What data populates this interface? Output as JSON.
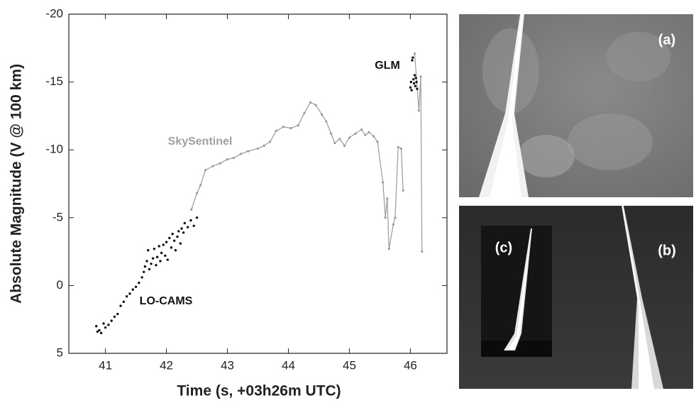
{
  "chart_data": {
    "type": "line",
    "x_label": "Time (s, +03h26m UTC)",
    "y_label": "Absolute Magnitude  (V @ 100 km)",
    "xlim": [
      40.4,
      46.6
    ],
    "xticks": [
      41,
      42,
      43,
      44,
      45,
      46
    ],
    "ylim": [
      5,
      -20
    ],
    "yticks": [
      -20,
      -15,
      -10,
      -5,
      0,
      5
    ],
    "series": [
      {
        "name": "SkySentinel",
        "type": "line",
        "color": "#9a9a9a",
        "x": [
          42.41,
          42.5,
          42.56,
          42.64,
          42.76,
          42.88,
          43.0,
          43.1,
          43.22,
          43.34,
          43.5,
          43.6,
          43.7,
          43.8,
          43.92,
          44.04,
          44.16,
          44.26,
          44.36,
          44.45,
          44.55,
          44.62,
          44.7,
          44.76,
          44.84,
          44.92,
          45.0,
          45.1,
          45.2,
          45.26,
          45.32,
          45.4,
          45.46,
          45.55,
          45.59,
          45.62,
          45.65,
          45.72,
          45.75,
          45.8,
          45.85,
          45.88,
          45.95,
          46.07,
          46.14,
          46.17,
          46.19
        ],
        "values": [
          -5.6,
          -6.8,
          -7.4,
          -8.5,
          -8.8,
          -9.0,
          -9.3,
          -9.4,
          -9.7,
          -9.9,
          -10.1,
          -10.3,
          -10.6,
          -11.4,
          -11.7,
          -11.6,
          -11.8,
          -12.7,
          -13.5,
          -13.3,
          -12.6,
          -12.1,
          -11.2,
          -10.5,
          -10.8,
          -10.3,
          -10.9,
          -11.2,
          -11.5,
          -11.1,
          -11.3,
          -11.0,
          -10.6,
          -7.6,
          -5.0,
          -6.4,
          -2.7,
          -4.5,
          -5.0,
          -10.2,
          -10.1,
          -7.0,
          null,
          -17.1,
          -12.9,
          -15.4,
          -2.5
        ]
      },
      {
        "name": "LO-CAMS",
        "type": "scatter",
        "color": "#111111",
        "x": [
          40.85,
          40.87,
          40.9,
          40.93,
          40.97,
          41.0,
          41.05,
          41.1,
          41.15,
          41.2,
          41.25,
          41.3,
          41.35,
          41.4,
          41.45,
          41.5,
          41.55,
          41.6,
          41.63,
          41.65,
          41.68,
          41.7,
          41.72,
          41.75,
          41.78,
          41.8,
          41.83,
          41.85,
          41.88,
          41.9,
          41.92,
          41.95,
          41.98,
          42.0,
          42.02,
          42.05,
          42.08,
          42.1,
          42.13,
          42.15,
          42.18,
          42.2,
          42.23,
          42.25,
          42.28,
          42.3,
          42.35,
          42.4,
          42.45,
          42.5
        ],
        "values": [
          3.0,
          3.4,
          3.3,
          3.5,
          2.8,
          3.1,
          2.9,
          2.6,
          2.3,
          2.1,
          1.5,
          1.2,
          0.8,
          0.6,
          0.3,
          0.1,
          -0.2,
          -0.6,
          -1.0,
          -1.4,
          -1.8,
          -2.6,
          -1.2,
          -1.6,
          -2.0,
          -2.7,
          -1.5,
          -2.1,
          -2.9,
          -1.8,
          -2.4,
          -3.0,
          -2.2,
          -3.2,
          -1.9,
          -3.5,
          -2.8,
          -3.8,
          -3.3,
          -2.6,
          -3.6,
          -4.0,
          -3.1,
          -4.2,
          -3.9,
          -4.6,
          -4.3,
          -4.8,
          -4.4,
          -5.0
        ]
      },
      {
        "name": "GLM",
        "type": "scatter",
        "color": "#111111",
        "x": [
          46.0,
          46.01,
          46.02,
          46.03,
          46.04,
          46.05,
          46.06,
          46.07,
          46.08,
          46.09,
          46.1,
          46.11
        ],
        "values": [
          -14.6,
          -15.0,
          -14.4,
          -16.6,
          -16.8,
          -15.2,
          -14.9,
          -15.5,
          -14.7,
          -15.3,
          -15.0,
          -14.5
        ]
      }
    ]
  },
  "panels": [
    {
      "label": "(a)"
    },
    {
      "label": "(b)"
    },
    {
      "label": "(c)"
    }
  ]
}
